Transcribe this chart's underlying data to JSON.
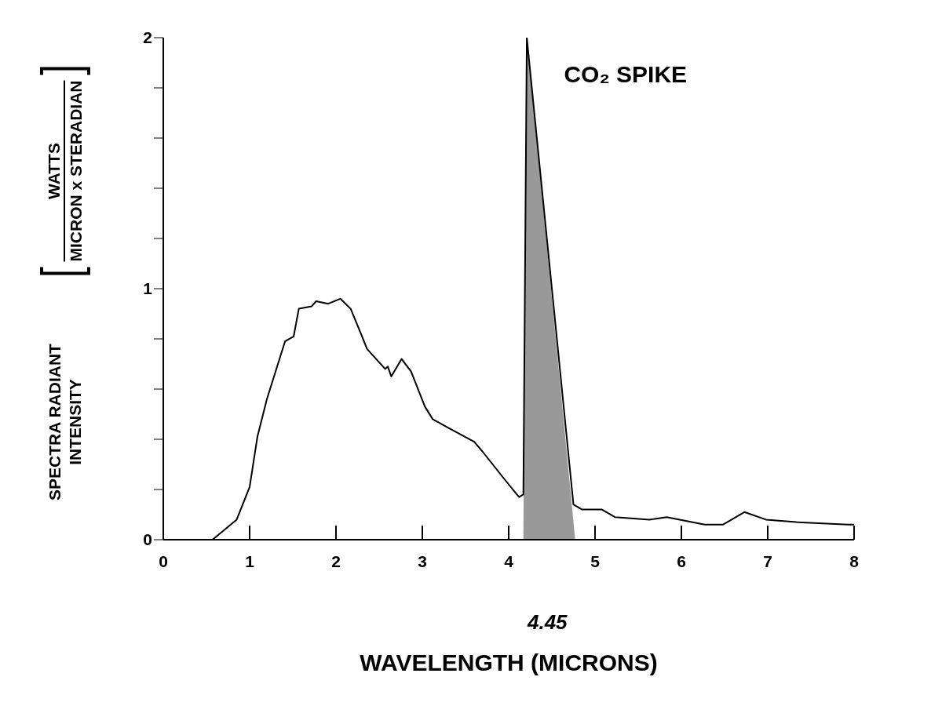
{
  "chart_data": {
    "type": "line",
    "xlabel": "WAVELENGTH (MICRONS)",
    "ylabel": "SPECTRA RADIANT INTENSITY",
    "annotations": [
      "CO₂ SPIKE",
      "4.45",
      "WATTS",
      "MICRON x STERADIAN"
    ],
    "series": [
      {
        "color": "#000000",
        "x": [
          0,
          0.57,
          0.85,
          1.0,
          1.09,
          1.2,
          1.41,
          1.51,
          1.57,
          1.72,
          1.77,
          1.91,
          2.05,
          2.17,
          2.29,
          2.36,
          2.57,
          2.6,
          2.64,
          2.76,
          2.87,
          3.03,
          3.12,
          3.33,
          3.6,
          3.7,
          3.93,
          4.12,
          4.17,
          4.21,
          4.75,
          4.85,
          5.05,
          5.08,
          5.23,
          5.63,
          5.83,
          6.27,
          6.48,
          6.73,
          6.98,
          7.33,
          7.93,
          8
        ],
        "values": [
          0,
          0,
          0.08,
          0.21,
          0.41,
          0.56,
          0.79,
          0.81,
          0.92,
          0.93,
          0.95,
          0.94,
          0.96,
          0.92,
          0.82,
          0.76,
          0.68,
          0.69,
          0.65,
          0.72,
          0.67,
          0.53,
          0.48,
          0.44,
          0.39,
          0.35,
          0.25,
          0.17,
          0.18,
          2.0,
          0.14,
          0.12,
          0.12,
          0.12,
          0.09,
          0.08,
          0.09,
          0.06,
          0.06,
          0.11,
          0.08,
          0.07,
          0.06,
          0.06
        ]
      },
      {
        "type": "area",
        "color": "#999999",
        "x": [
          4.17,
          4.21,
          4.77
        ],
        "values": [
          0,
          2.0,
          0
        ]
      }
    ],
    "xlim": [
      0,
      8
    ],
    "xticks": [
      0,
      1,
      2,
      3,
      4,
      5,
      6,
      7,
      8
    ],
    "ylim": [
      0,
      2
    ],
    "yticks": [
      0,
      {
        "value": 0.2,
        "label": null
      },
      {
        "value": 0.4,
        "label": null
      },
      {
        "value": 0.6,
        "label": null
      },
      {
        "value": 0.8,
        "label": null
      },
      1,
      {
        "value": 1.2,
        "label": null
      },
      {
        "value": 1.4,
        "label": null
      },
      {
        "value": 1.6,
        "label": null
      },
      {
        "value": 1.8,
        "label": null
      },
      2
    ],
    "grid": false,
    "legend": false,
    "marker": "none",
    "line_style": "solid"
  }
}
